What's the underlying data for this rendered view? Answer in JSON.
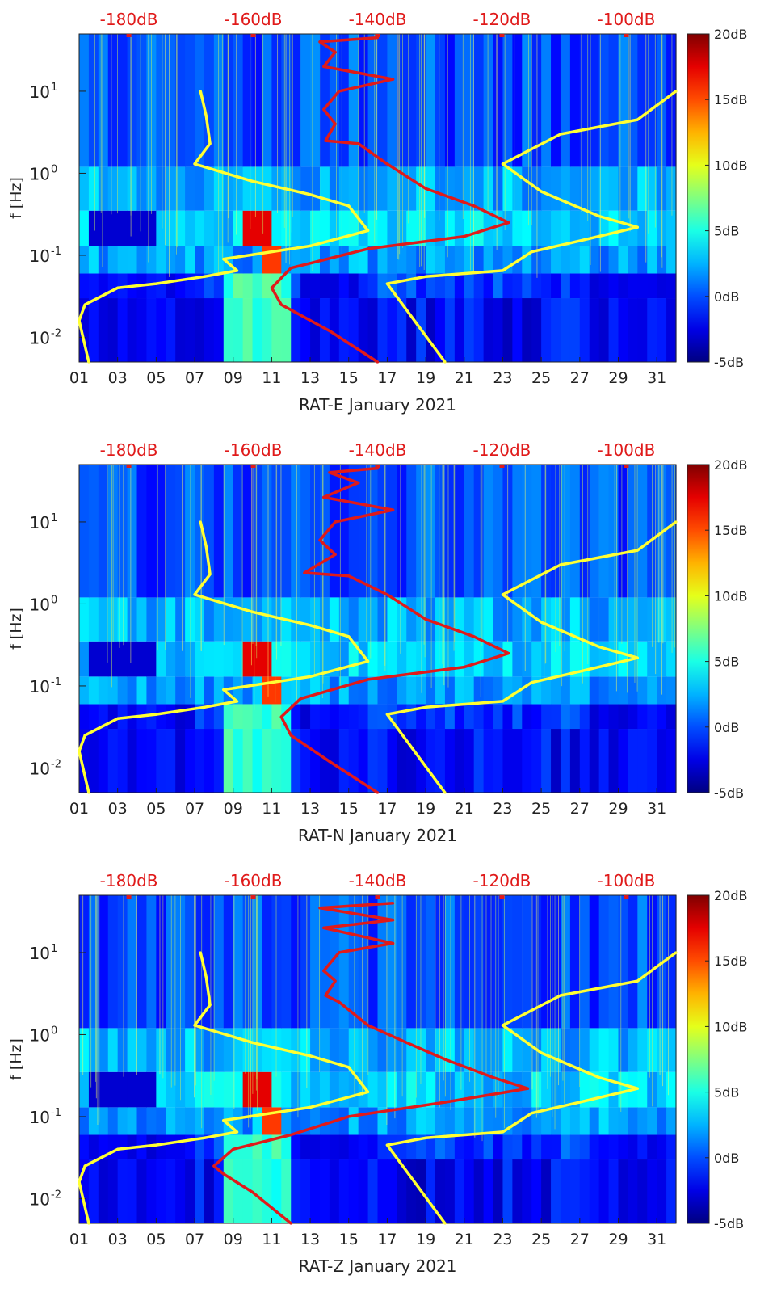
{
  "figure": {
    "y_label": "f [Hz]",
    "y_ticks": [
      {
        "value": 10,
        "label": "10",
        "exp": "1"
      },
      {
        "value": 1,
        "label": "10",
        "exp": "0"
      },
      {
        "value": 0.1,
        "label": "10",
        "exp": "-1"
      },
      {
        "value": 0.01,
        "label": "10",
        "exp": "-2"
      }
    ],
    "x_ticks": [
      "01",
      "03",
      "05",
      "07",
      "09",
      "11",
      "13",
      "15",
      "17",
      "19",
      "21",
      "23",
      "25",
      "27",
      "29",
      "31"
    ],
    "top_ticks": [
      "-180dB",
      "-160dB",
      "-140dB",
      "-120dB",
      "-100dB"
    ],
    "colorbar_ticks": [
      "20dB",
      "15dB",
      "10dB",
      "5dB",
      "0dB",
      "-5dB"
    ]
  },
  "chart_data": [
    {
      "type": "heatmap",
      "title": "RAT-E January 2021",
      "xlabel": "RAT-E January 2021",
      "ylabel": "f [Hz]",
      "xlim": [
        1,
        32
      ],
      "ylim": [
        0.005,
        50
      ],
      "ylog": true,
      "top_axis": {
        "range_db": [
          -188,
          -92
        ]
      },
      "colorbar": {
        "range_db": [
          -5,
          20
        ],
        "colormap": "jet"
      },
      "series": [
        {
          "name": "yellow-left",
          "color": "#ffff33",
          "points": [
            [
              1.5,
              0.005
            ],
            [
              1.0,
              0.016
            ],
            [
              1.3,
              0.025
            ],
            [
              3,
              0.04
            ],
            [
              5,
              0.045
            ],
            [
              7.5,
              0.055
            ],
            [
              9.2,
              0.065
            ],
            [
              8.5,
              0.09
            ],
            [
              13,
              0.13
            ],
            [
              16,
              0.2
            ],
            [
              15,
              0.4
            ],
            [
              13,
              0.55
            ],
            [
              10,
              0.8
            ],
            [
              7,
              1.3
            ],
            [
              7.8,
              2.3
            ],
            [
              7.6,
              5
            ],
            [
              7.4,
              8
            ],
            [
              7.3,
              10
            ]
          ]
        },
        {
          "name": "yellow-right",
          "color": "#ffff33",
          "points": [
            [
              20,
              0.005
            ],
            [
              18.5,
              0.015
            ],
            [
              17,
              0.045
            ],
            [
              19,
              0.055
            ],
            [
              23,
              0.065
            ],
            [
              24.5,
              0.11
            ],
            [
              27,
              0.15
            ],
            [
              30,
              0.22
            ],
            [
              28,
              0.3
            ],
            [
              25,
              0.6
            ],
            [
              23,
              1.3
            ],
            [
              26,
              3
            ],
            [
              30,
              4.5
            ],
            [
              32,
              10
            ]
          ]
        },
        {
          "name": "red",
          "color": "#e01a1a",
          "points": [
            [
              16.5,
              0.005
            ],
            [
              14,
              0.012
            ],
            [
              11.5,
              0.025
            ],
            [
              11,
              0.04
            ],
            [
              12,
              0.07
            ],
            [
              16,
              0.12
            ],
            [
              21,
              0.17
            ],
            [
              23.3,
              0.25
            ],
            [
              21.5,
              0.4
            ],
            [
              19,
              0.65
            ],
            [
              17,
              1.3
            ],
            [
              15.5,
              2.3
            ],
            [
              13.8,
              2.5
            ],
            [
              14.3,
              4
            ],
            [
              13.7,
              6
            ],
            [
              14.5,
              10
            ],
            [
              17.3,
              14
            ],
            [
              13.7,
              20
            ],
            [
              14.3,
              30
            ],
            [
              13.5,
              40
            ],
            [
              16.5,
              45
            ]
          ]
        }
      ]
    },
    {
      "type": "heatmap",
      "title": "RAT-N January 2021",
      "xlabel": "RAT-N January 2021",
      "ylabel": "f [Hz]",
      "xlim": [
        1,
        32
      ],
      "ylim": [
        0.005,
        50
      ],
      "ylog": true,
      "top_axis": {
        "range_db": [
          -188,
          -92
        ]
      },
      "colorbar": {
        "range_db": [
          -5,
          20
        ],
        "colormap": "jet"
      },
      "series": [
        {
          "name": "yellow-left",
          "color": "#ffff33",
          "points": [
            [
              1.5,
              0.005
            ],
            [
              1.0,
              0.016
            ],
            [
              1.3,
              0.025
            ],
            [
              3,
              0.04
            ],
            [
              5,
              0.045
            ],
            [
              7.5,
              0.055
            ],
            [
              9.2,
              0.065
            ],
            [
              8.5,
              0.09
            ],
            [
              13,
              0.13
            ],
            [
              16,
              0.2
            ],
            [
              15,
              0.4
            ],
            [
              13,
              0.55
            ],
            [
              10,
              0.8
            ],
            [
              7,
              1.3
            ],
            [
              7.8,
              2.3
            ],
            [
              7.6,
              5
            ],
            [
              7.4,
              8
            ],
            [
              7.3,
              10
            ]
          ]
        },
        {
          "name": "yellow-right",
          "color": "#ffff33",
          "points": [
            [
              20,
              0.005
            ],
            [
              18.5,
              0.015
            ],
            [
              17,
              0.045
            ],
            [
              19,
              0.055
            ],
            [
              23,
              0.065
            ],
            [
              24.5,
              0.11
            ],
            [
              27,
              0.15
            ],
            [
              30,
              0.22
            ],
            [
              28,
              0.3
            ],
            [
              25,
              0.6
            ],
            [
              23,
              1.3
            ],
            [
              26,
              3
            ],
            [
              30,
              4.5
            ],
            [
              32,
              10
            ]
          ]
        },
        {
          "name": "red",
          "color": "#e01a1a",
          "points": [
            [
              16.5,
              0.005
            ],
            [
              14,
              0.012
            ],
            [
              12,
              0.025
            ],
            [
              11.5,
              0.042
            ],
            [
              12.5,
              0.07
            ],
            [
              16,
              0.12
            ],
            [
              21,
              0.17
            ],
            [
              23.3,
              0.25
            ],
            [
              21.5,
              0.4
            ],
            [
              19,
              0.65
            ],
            [
              17,
              1.3
            ],
            [
              15,
              2.2
            ],
            [
              12.7,
              2.4
            ],
            [
              14.3,
              4
            ],
            [
              13.5,
              6
            ],
            [
              14.3,
              10
            ],
            [
              17.3,
              14
            ],
            [
              13.7,
              20
            ],
            [
              15.5,
              30
            ],
            [
              14,
              40
            ],
            [
              16.5,
              45
            ]
          ]
        }
      ]
    },
    {
      "type": "heatmap",
      "title": "RAT-Z January 2021",
      "xlabel": "RAT-Z January 2021",
      "ylabel": "f [Hz]",
      "xlim": [
        1,
        32
      ],
      "ylim": [
        0.005,
        50
      ],
      "ylog": true,
      "top_axis": {
        "range_db": [
          -188,
          -92
        ]
      },
      "colorbar": {
        "range_db": [
          -5,
          20
        ],
        "colormap": "jet"
      },
      "series": [
        {
          "name": "yellow-left",
          "color": "#ffff33",
          "points": [
            [
              1.5,
              0.005
            ],
            [
              1.0,
              0.016
            ],
            [
              1.3,
              0.025
            ],
            [
              3,
              0.04
            ],
            [
              5,
              0.045
            ],
            [
              7.5,
              0.055
            ],
            [
              9.2,
              0.065
            ],
            [
              8.5,
              0.09
            ],
            [
              13,
              0.13
            ],
            [
              16,
              0.2
            ],
            [
              15,
              0.4
            ],
            [
              13,
              0.55
            ],
            [
              10,
              0.8
            ],
            [
              7,
              1.3
            ],
            [
              7.8,
              2.3
            ],
            [
              7.6,
              5
            ],
            [
              7.4,
              8
            ],
            [
              7.3,
              10
            ]
          ]
        },
        {
          "name": "yellow-right",
          "color": "#ffff33",
          "points": [
            [
              20,
              0.005
            ],
            [
              18.5,
              0.015
            ],
            [
              17,
              0.045
            ],
            [
              19,
              0.055
            ],
            [
              23,
              0.065
            ],
            [
              24.5,
              0.11
            ],
            [
              27,
              0.15
            ],
            [
              30,
              0.22
            ],
            [
              28,
              0.3
            ],
            [
              25,
              0.6
            ],
            [
              23,
              1.3
            ],
            [
              26,
              3
            ],
            [
              30,
              4.5
            ],
            [
              32,
              10
            ]
          ]
        },
        {
          "name": "red",
          "color": "#e01a1a",
          "points": [
            [
              12,
              0.005
            ],
            [
              10,
              0.012
            ],
            [
              8.5,
              0.02
            ],
            [
              8,
              0.025
            ],
            [
              9,
              0.04
            ],
            [
              12,
              0.06
            ],
            [
              15,
              0.1
            ],
            [
              20,
              0.15
            ],
            [
              24.3,
              0.22
            ],
            [
              22.5,
              0.3
            ],
            [
              20,
              0.5
            ],
            [
              18,
              0.8
            ],
            [
              16,
              1.3
            ],
            [
              14.5,
              2.5
            ],
            [
              13.8,
              3
            ],
            [
              14.3,
              4.5
            ],
            [
              13.7,
              6
            ],
            [
              14.5,
              10
            ],
            [
              17.3,
              13
            ],
            [
              13.7,
              20
            ],
            [
              17.3,
              25
            ],
            [
              13.5,
              35
            ],
            [
              17.3,
              40
            ]
          ]
        }
      ]
    }
  ]
}
